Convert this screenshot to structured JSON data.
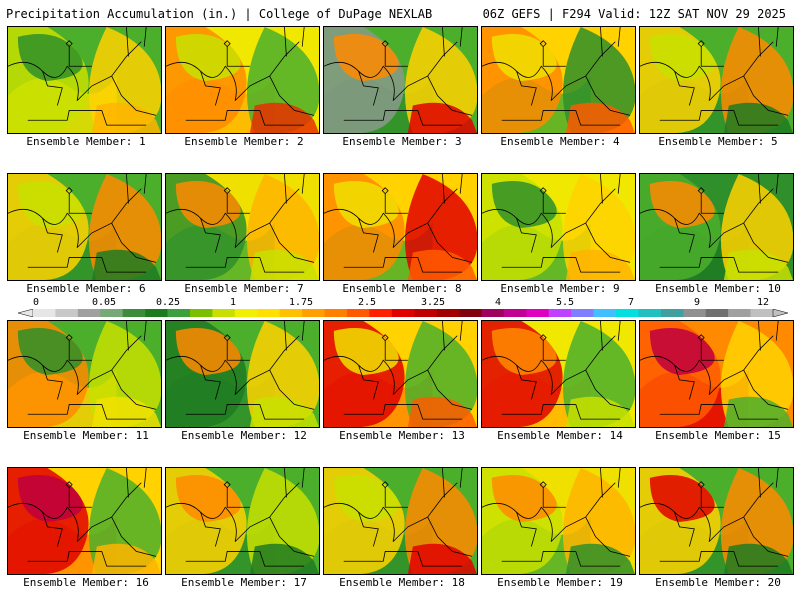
{
  "header": {
    "left_title": "Precipitation Accumulation (in.) | College of DuPage NEXLAB",
    "right_title": "06Z GEFS | F294 Valid: 12Z SAT NOV 29 2025"
  },
  "panels": [
    {
      "label": "Ensemble Member: 1",
      "base": "#4caf2c",
      "blobs": [
        "#f0e000",
        "#c8e000",
        "#ffd200",
        "#2f8f2a",
        "#ffb400"
      ]
    },
    {
      "label": "Ensemble Member: 2",
      "base": "#f0e800",
      "blobs": [
        "#ffb400",
        "#ff8a00",
        "#4caf2c",
        "#c8e000",
        "#e83000"
      ]
    },
    {
      "label": "Ensemble Member: 3",
      "base": "#4caf2c",
      "blobs": [
        "#2f8f2a",
        "#8a9a8a",
        "#ffd200",
        "#ff8a00",
        "#e00000"
      ]
    },
    {
      "label": "Ensemble Member: 4",
      "base": "#ffd200",
      "blobs": [
        "#4caf2c",
        "#ff8a00",
        "#2f8f2a",
        "#f0e000",
        "#ff5a00"
      ]
    },
    {
      "label": "Ensemble Member: 5",
      "base": "#4caf2c",
      "blobs": [
        "#2f8f2a",
        "#ffd200",
        "#ff8a00",
        "#c8e000",
        "#1f7a22"
      ]
    },
    {
      "label": "Ensemble Member: 6",
      "base": "#4caf2c",
      "blobs": [
        "#2f8f2a",
        "#ffd200",
        "#ff8a00",
        "#c8e000",
        "#1f7a22"
      ]
    },
    {
      "label": "Ensemble Member: 7",
      "base": "#f0e000",
      "blobs": [
        "#4caf2c",
        "#2f8f2a",
        "#ffb400",
        "#ff8a00",
        "#c8e000"
      ]
    },
    {
      "label": "Ensemble Member: 8",
      "base": "#ffd200",
      "blobs": [
        "#4caf2c",
        "#ff8a00",
        "#e00000",
        "#f0e000",
        "#ff5a00"
      ]
    },
    {
      "label": "Ensemble Member: 9",
      "base": "#f0e800",
      "blobs": [
        "#4caf2c",
        "#c8e000",
        "#ffd200",
        "#2f8f2a",
        "#ffb400"
      ]
    },
    {
      "label": "Ensemble Member: 10",
      "base": "#2f8f2a",
      "blobs": [
        "#1f7a22",
        "#4caf2c",
        "#ffd200",
        "#ff8a00",
        "#c8e000"
      ]
    },
    {
      "label": "Ensemble Member: 11",
      "base": "#4caf2c",
      "blobs": [
        "#ffd200",
        "#ff8a00",
        "#c8e000",
        "#2f8f2a",
        "#f0e000"
      ]
    },
    {
      "label": "Ensemble Member: 12",
      "base": "#4caf2c",
      "blobs": [
        "#2f8f2a",
        "#1f7a22",
        "#ffd200",
        "#ff8a00",
        "#c8e000"
      ]
    },
    {
      "label": "Ensemble Member: 13",
      "base": "#ffd200",
      "blobs": [
        "#ff8a00",
        "#e00000",
        "#4caf2c",
        "#f0e000",
        "#ff5a00"
      ]
    },
    {
      "label": "Ensemble Member: 14",
      "base": "#f0e800",
      "blobs": [
        "#ffb400",
        "#e00000",
        "#4caf2c",
        "#ff8a00",
        "#c8e000"
      ]
    },
    {
      "label": "Ensemble Member: 15",
      "base": "#ff8a00",
      "blobs": [
        "#e00000",
        "#ff5a00",
        "#ffd200",
        "#c00040",
        "#4caf2c"
      ]
    },
    {
      "label": "Ensemble Member: 16",
      "base": "#ffd200",
      "blobs": [
        "#ff8a00",
        "#e00000",
        "#4caf2c",
        "#c00040",
        "#ffb400"
      ]
    },
    {
      "label": "Ensemble Member: 17",
      "base": "#4caf2c",
      "blobs": [
        "#2f8f2a",
        "#ffd200",
        "#c8e000",
        "#ff8a00",
        "#1f7a22"
      ]
    },
    {
      "label": "Ensemble Member: 18",
      "base": "#4caf2c",
      "blobs": [
        "#2f8f2a",
        "#ffd200",
        "#ff8a00",
        "#c8e000",
        "#e00000"
      ]
    },
    {
      "label": "Ensemble Member: 19",
      "base": "#f0e000",
      "blobs": [
        "#4caf2c",
        "#c8e000",
        "#ffb400",
        "#ff8a00",
        "#2f8f2a"
      ]
    },
    {
      "label": "Ensemble Member: 20",
      "base": "#4caf2c",
      "blobs": [
        "#2f8f2a",
        "#ffd200",
        "#ff8a00",
        "#e00000",
        "#1f7a22"
      ]
    }
  ],
  "colorbar": {
    "tick_labels": [
      "0",
      "0.05",
      "0.25",
      "1",
      "1.75",
      "2.5",
      "3.25",
      "4",
      "5.5",
      "7",
      "9",
      "12"
    ],
    "colors": [
      "#e6e6e6",
      "#c8c8c8",
      "#a0a0a0",
      "#78a878",
      "#3c8c3c",
      "#1e7a1e",
      "#3ca03c",
      "#7ac000",
      "#c8e000",
      "#f0f000",
      "#ffe000",
      "#ffc000",
      "#ffa000",
      "#ff8000",
      "#ff5a00",
      "#ff2000",
      "#e00000",
      "#c00000",
      "#a00000",
      "#800010",
      "#a00060",
      "#c00090",
      "#e000c0",
      "#c040ff",
      "#8080ff",
      "#40c0ff",
      "#00e0e0",
      "#20c0c0",
      "#40a0a0",
      "#909090",
      "#707070",
      "#a0a0a0",
      "#c0c0c0"
    ]
  }
}
